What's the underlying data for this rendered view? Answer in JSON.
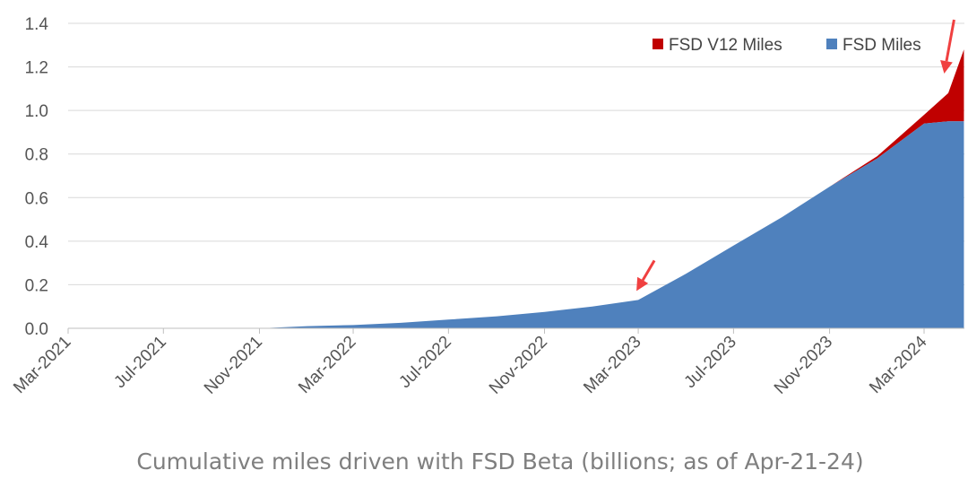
{
  "chart_data": {
    "type": "area",
    "title": "Cumulative miles driven with FSD Beta (billions; as of Apr-21-24)",
    "xlabel": "",
    "ylabel": "",
    "ylim": [
      0,
      1.4
    ],
    "yticks": [
      "0.0",
      "0.2",
      "0.4",
      "0.6",
      "0.8",
      "1.0",
      "1.2",
      "1.4"
    ],
    "xticks": [
      "Mar-2021",
      "Jul-2021",
      "Nov-2021",
      "Mar-2022",
      "Jul-2022",
      "Nov-2022",
      "Mar-2023",
      "Jul-2023",
      "Nov-2023",
      "Mar-2024"
    ],
    "grid": true,
    "legend_position": "top-right",
    "x": [
      "2021-11",
      "2022-01",
      "2022-03",
      "2022-05",
      "2022-07",
      "2022-09",
      "2022-11",
      "2023-01",
      "2023-03",
      "2023-05",
      "2023-07",
      "2023-09",
      "2023-11",
      "2024-01",
      "2024-03",
      "2024-04",
      "2024-04-21"
    ],
    "stacked": true,
    "series": [
      {
        "name": "FSD Miles",
        "color": "#4f81bd",
        "values": [
          0.0,
          0.01,
          0.015,
          0.025,
          0.04,
          0.055,
          0.075,
          0.1,
          0.13,
          0.25,
          0.38,
          0.51,
          0.65,
          0.78,
          0.94,
          0.95,
          0.95
        ]
      },
      {
        "name": "FSD V12 Miles",
        "color": "#c00000",
        "values": [
          0,
          0,
          0,
          0,
          0,
          0,
          0,
          0,
          0,
          0,
          0,
          0,
          0,
          0.01,
          0.04,
          0.13,
          0.33
        ]
      }
    ],
    "annotations": [
      {
        "type": "arrow",
        "x": "2023-03",
        "color": "#f04040"
      },
      {
        "type": "arrow",
        "x": "2024-04-21",
        "color": "#f04040"
      }
    ]
  }
}
